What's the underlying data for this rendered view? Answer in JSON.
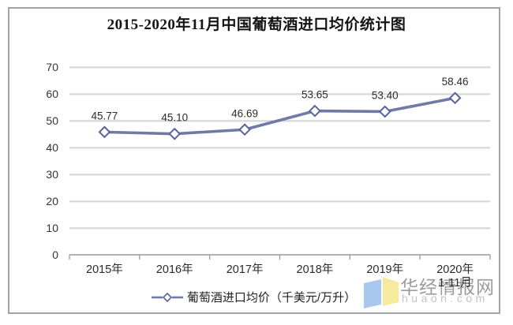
{
  "chart_data": {
    "type": "line",
    "title": "2015-2020年11月中国葡萄酒进口均价统计图",
    "categories": [
      "2015年",
      "2016年",
      "2017年",
      "2018年",
      "2019年",
      "2020年"
    ],
    "last_category_line2": "1-11月",
    "values": [
      45.77,
      45.1,
      46.69,
      53.65,
      53.4,
      58.46
    ],
    "data_labels": [
      "45.77",
      "45.10",
      "46.69",
      "53.65",
      "53.40",
      "58.46"
    ],
    "ylim": [
      0,
      70
    ],
    "ytick_step": 10,
    "grid": true,
    "legend": "葡萄酒进口均价（千美元/万升）",
    "legend_position": "bottom",
    "line_color": "#6f7aa6",
    "marker_stroke": "#59659a",
    "marker": "diamond-open",
    "gridline_color": "#bfbfbf",
    "axis_color": "#9a9a9a",
    "label_color": "#2b2b2b"
  },
  "watermark": {
    "name": "华经情报网",
    "domain": "huaon.com",
    "logo_blue": "#a9c8ee",
    "logo_yellow": "#f6eb9d"
  }
}
